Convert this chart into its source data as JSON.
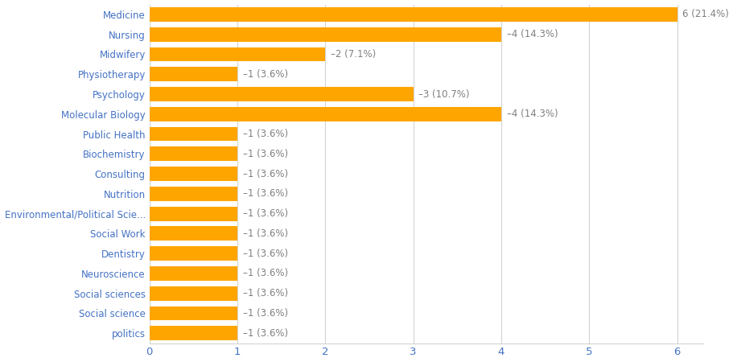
{
  "categories": [
    "politics",
    "Social science",
    "Social sciences",
    "Neuroscience",
    "Dentistry",
    "Social Work",
    "Environmental/Political Scie...",
    "Nutrition",
    "Consulting",
    "Biochemistry",
    "Public Health",
    "Molecular Biology",
    "Psychology",
    "Physiotherapy",
    "Midwifery",
    "Nursing",
    "Medicine"
  ],
  "values": [
    1,
    1,
    1,
    1,
    1,
    1,
    1,
    1,
    1,
    1,
    1,
    4,
    3,
    1,
    2,
    4,
    6
  ],
  "labels": [
    "–1 (3.6%)",
    "–1 (3.6%)",
    "–1 (3.6%)",
    "–1 (3.6%)",
    "–1 (3.6%)",
    "–1 (3.6%)",
    "–1 (3.6%)",
    "–1 (3.6%)",
    "–1 (3.6%)",
    "–1 (3.6%)",
    "–1 (3.6%)",
    "–4 (14.3%)",
    "–3 (10.7%)",
    "–1 (3.6%)",
    "–2 (7.1%)",
    "–4 (14.3%)",
    "6 (21.4%)"
  ],
  "bar_color": "#FFA500",
  "label_color": "#808080",
  "tick_label_color": "#4472C4",
  "x_tick_color": "#4472C4",
  "background_color": "#FFFFFF",
  "grid_color": "#D3D3D3",
  "xlim": [
    0,
    6.3
  ],
  "xticks": [
    0,
    1,
    2,
    3,
    4,
    5,
    6
  ],
  "bar_height": 0.72,
  "figsize": [
    9.11,
    4.5
  ],
  "dpi": 100,
  "label_fontsize": 8.5,
  "ytick_fontsize": 8.5,
  "xtick_fontsize": 9.5
}
